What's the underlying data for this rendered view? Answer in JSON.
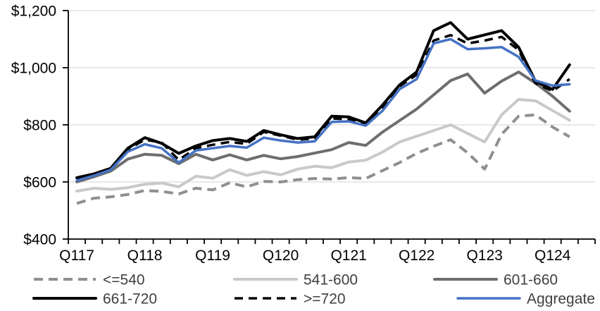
{
  "chart_data": {
    "type": "line",
    "title": "",
    "categories": [
      "Q117",
      "Q217",
      "Q317",
      "Q417",
      "Q118",
      "Q218",
      "Q318",
      "Q418",
      "Q119",
      "Q219",
      "Q319",
      "Q419",
      "Q120",
      "Q220",
      "Q320",
      "Q420",
      "Q121",
      "Q221",
      "Q321",
      "Q421",
      "Q122",
      "Q222",
      "Q322",
      "Q422",
      "Q123",
      "Q223",
      "Q323",
      "Q423",
      "Q124",
      "Q224"
    ],
    "x_axis": {
      "shown_tick_indices": [
        0,
        4,
        8,
        12,
        16,
        20,
        24,
        28
      ]
    },
    "y_axis": {
      "min": 400,
      "max": 1200,
      "step": 200,
      "tick_labels": [
        "$400",
        "$600",
        "$800",
        "$1,000",
        "$1,200"
      ]
    },
    "grid": "horizontal",
    "legend_position": "bottom",
    "legend": [
      "<=540",
      "541-600",
      "601-660",
      "661-720",
      ">=720",
      "Aggregate"
    ],
    "series": [
      {
        "name": "<=540",
        "color": "#8f8f8f",
        "dash": "13 8",
        "width": 4,
        "values": [
          525,
          543,
          548,
          556,
          570,
          567,
          558,
          578,
          572,
          597,
          583,
          602,
          600,
          608,
          612,
          610,
          615,
          612,
          640,
          668,
          700,
          725,
          748,
          702,
          645,
          767,
          830,
          835,
          792,
          758
        ]
      },
      {
        "name": "541-600",
        "color": "#c9c9c9",
        "dash": "",
        "width": 4,
        "values": [
          568,
          578,
          574,
          580,
          592,
          596,
          583,
          620,
          613,
          643,
          623,
          636,
          625,
          645,
          655,
          650,
          670,
          676,
          705,
          740,
          760,
          780,
          800,
          770,
          740,
          835,
          889,
          884,
          850,
          816
        ]
      },
      {
        "name": "601-660",
        "color": "#6e6e6e",
        "dash": "",
        "width": 4,
        "values": [
          600,
          618,
          638,
          680,
          697,
          693,
          664,
          697,
          677,
          695,
          677,
          693,
          681,
          689,
          701,
          713,
          738,
          728,
          775,
          815,
          855,
          905,
          955,
          978,
          911,
          953,
          985,
          946,
          900,
          848
        ]
      },
      {
        "name": "661-720",
        "color": "#000000",
        "dash": "",
        "width": 4,
        "values": [
          615,
          628,
          648,
          718,
          755,
          735,
          700,
          726,
          745,
          752,
          742,
          780,
          765,
          752,
          758,
          830,
          828,
          807,
          870,
          940,
          985,
          1130,
          1158,
          1100,
          1115,
          1130,
          1072,
          952,
          924,
          1010
        ]
      },
      {
        "name": ">=720",
        "color": "#000000",
        "dash": "12 8",
        "width": 3.5,
        "values": [
          607,
          623,
          644,
          714,
          748,
          738,
          677,
          718,
          730,
          740,
          733,
          775,
          762,
          748,
          752,
          822,
          820,
          800,
          862,
          935,
          975,
          1095,
          1114,
          1085,
          1095,
          1108,
          1062,
          945,
          918,
          960
        ]
      },
      {
        "name": "Aggregate",
        "color": "#4472c4",
        "dash": "",
        "width": 3.5,
        "values": [
          605,
          622,
          643,
          706,
          732,
          718,
          668,
          710,
          718,
          726,
          720,
          755,
          745,
          738,
          742,
          810,
          812,
          797,
          850,
          925,
          960,
          1085,
          1100,
          1065,
          1068,
          1072,
          1038,
          955,
          937,
          942
        ]
      }
    ]
  },
  "colors": {
    "axis": "#000000",
    "gridline": "#d9d9d9",
    "axis_text": "#000000",
    "legend_text": "#3f3f3f"
  }
}
